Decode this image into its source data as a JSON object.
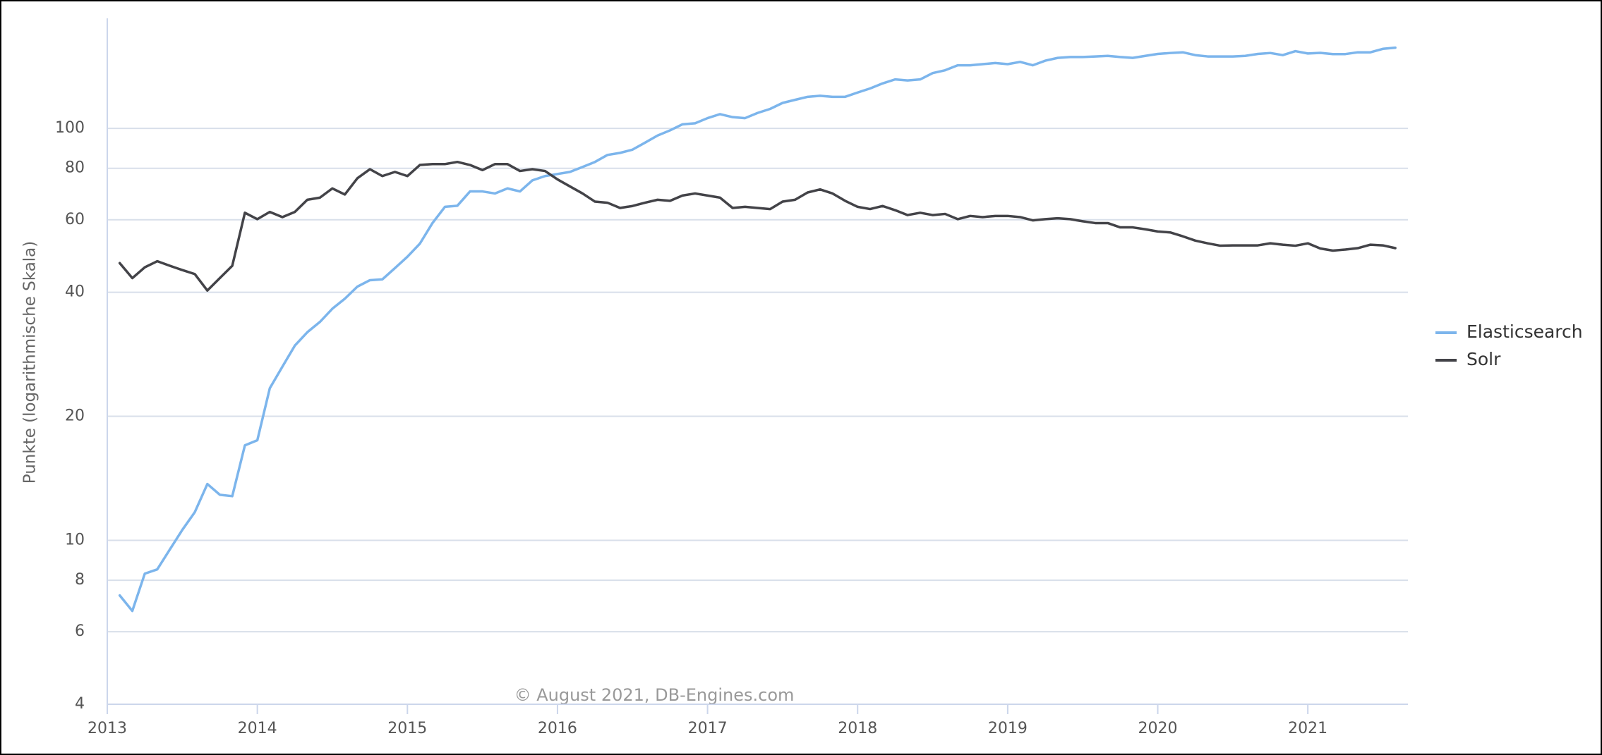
{
  "chart_data": {
    "type": "line",
    "y_label": "Punkte (logarithmische Skala)",
    "credit": "© August 2021, DB-Engines.com",
    "log_y": true,
    "grid": true,
    "legend": "right",
    "xlim": [
      2013,
      2021.667
    ],
    "xticks": [
      2013,
      2014,
      2015,
      2016,
      2017,
      2018,
      2019,
      2020,
      2021
    ],
    "ylim": [
      4,
      185
    ],
    "yticks": [
      4,
      6,
      8,
      10,
      20,
      40,
      60,
      80,
      100
    ],
    "x": [
      2013.083,
      2013.167,
      2013.25,
      2013.333,
      2013.417,
      2013.5,
      2013.583,
      2013.667,
      2013.75,
      2013.833,
      2013.917,
      2014,
      2014.083,
      2014.167,
      2014.25,
      2014.333,
      2014.417,
      2014.5,
      2014.583,
      2014.667,
      2014.75,
      2014.833,
      2014.917,
      2015,
      2015.083,
      2015.167,
      2015.25,
      2015.333,
      2015.417,
      2015.5,
      2015.583,
      2015.667,
      2015.75,
      2015.833,
      2015.917,
      2016,
      2016.083,
      2016.167,
      2016.25,
      2016.333,
      2016.417,
      2016.5,
      2016.583,
      2016.667,
      2016.75,
      2016.833,
      2016.917,
      2017,
      2017.083,
      2017.167,
      2017.25,
      2017.333,
      2017.417,
      2017.5,
      2017.583,
      2017.667,
      2017.75,
      2017.833,
      2017.917,
      2018,
      2018.083,
      2018.167,
      2018.25,
      2018.333,
      2018.417,
      2018.5,
      2018.583,
      2018.667,
      2018.75,
      2018.833,
      2018.917,
      2019,
      2019.083,
      2019.167,
      2019.25,
      2019.333,
      2019.417,
      2019.5,
      2019.583,
      2019.667,
      2019.75,
      2019.833,
      2019.917,
      2020,
      2020.083,
      2020.167,
      2020.25,
      2020.333,
      2020.417,
      2020.5,
      2020.583,
      2020.667,
      2020.75,
      2020.833,
      2020.917,
      2021,
      2021.083,
      2021.167,
      2021.25,
      2021.333,
      2021.417,
      2021.5,
      2021.583
    ],
    "series": [
      {
        "name": "Elasticsearch",
        "color": "#7cb5ec",
        "values": [
          7.35,
          6.74,
          8.3,
          8.5,
          9.5,
          10.6,
          11.7,
          13.7,
          12.9,
          12.8,
          17.0,
          17.5,
          23.4,
          26.4,
          29.7,
          32.0,
          33.9,
          36.5,
          38.6,
          41.3,
          42.8,
          43.0,
          45.8,
          48.8,
          52.5,
          58.9,
          64.5,
          64.9,
          70.3,
          70.3,
          69.5,
          71.5,
          70.3,
          74.8,
          76.6,
          77.5,
          78.4,
          80.6,
          82.9,
          86.2,
          87.2,
          88.8,
          92.3,
          96.1,
          98.9,
          102.3,
          102.9,
          105.9,
          108.3,
          106.5,
          105.9,
          109.0,
          111.5,
          115.3,
          117.3,
          119.3,
          120.0,
          119.3,
          119.3,
          122.2,
          125.0,
          128.6,
          131.5,
          130.7,
          131.5,
          136.2,
          138.4,
          142.3,
          142.3,
          143.2,
          144.1,
          143.2,
          145,
          142.3,
          146,
          148.3,
          149,
          149,
          149.5,
          150,
          149,
          148.3,
          150,
          151.6,
          152.4,
          153,
          150.6,
          149.5,
          149.5,
          149.5,
          150,
          151.6,
          152.4,
          150.6,
          154,
          152,
          152.5,
          151.5,
          151.5,
          153,
          153,
          156,
          157
        ]
      },
      {
        "name": "Solr",
        "color": "#434348",
        "values": [
          47.1,
          43.3,
          46.0,
          47.6,
          46.4,
          45.3,
          44.3,
          40.4,
          43.3,
          46.4,
          62.4,
          60.2,
          62.7,
          60.9,
          62.7,
          67.1,
          67.9,
          71.5,
          69.1,
          75.7,
          79.6,
          76.6,
          78.4,
          76.6,
          81.5,
          81.9,
          81.9,
          82.9,
          81.5,
          79.2,
          81.9,
          81.9,
          78.8,
          79.6,
          78.8,
          75.2,
          72.3,
          69.5,
          66.4,
          66.0,
          64.1,
          64.8,
          66.0,
          67.1,
          66.7,
          68.7,
          69.5,
          68.7,
          67.9,
          64.1,
          64.5,
          64.1,
          63.7,
          66.4,
          67.1,
          69.9,
          71.1,
          69.5,
          66.7,
          64.5,
          63.7,
          64.8,
          63.3,
          61.6,
          62.4,
          61.6,
          62.0,
          60.2,
          61.3,
          60.9,
          61.3,
          61.3,
          60.9,
          59.8,
          60.2,
          60.5,
          60.2,
          59.5,
          58.9,
          58.9,
          57.5,
          57.5,
          56.9,
          56.2,
          55.9,
          54.7,
          53.4,
          52.6,
          51.9,
          52.0,
          52.0,
          52.0,
          52.6,
          52.2,
          51.9,
          52.6,
          51.1,
          50.5,
          50.8,
          51.2,
          52.2,
          52.0,
          51.2
        ]
      }
    ]
  }
}
